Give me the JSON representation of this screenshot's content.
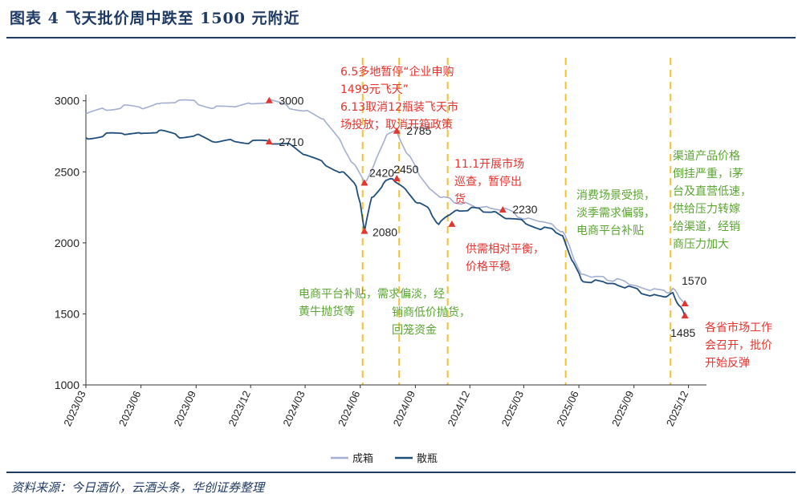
{
  "figure": {
    "title": "图表 4   飞天批价周中跌至 1500 元附近",
    "source": "资料来源：今日酒价，云酒头条，华创证券整理"
  },
  "colors": {
    "boxed": "#a3aed0",
    "loose": "#1f4e7a",
    "vline": "#f2c230",
    "marker": "#e3342f",
    "red_text": "#e3342f",
    "green_text": "#5aa531",
    "axis": "#333333"
  },
  "chart_data": {
    "type": "line",
    "title": "",
    "xlabel": "",
    "ylabel": "",
    "ylim": [
      1000,
      3100
    ],
    "yticks": [
      1000,
      1500,
      2000,
      2500,
      3000
    ],
    "x_range": [
      "2023-03-01",
      "2025-12-31"
    ],
    "xticks": [
      "2023/03",
      "2023/06",
      "2023/09",
      "2023/12",
      "2024/03",
      "2024/06",
      "2024/09",
      "2024/12",
      "2025/03",
      "2025/06",
      "2025/09",
      "2025/12"
    ],
    "legend": "bottom-left",
    "series": [
      {
        "name": "成箱",
        "points": [
          [
            "2023-03-01",
            2910
          ],
          [
            "2023-04-01",
            2940
          ],
          [
            "2023-05-01",
            2960
          ],
          [
            "2023-06-01",
            2950
          ],
          [
            "2023-07-01",
            2980
          ],
          [
            "2023-08-01",
            3000
          ],
          [
            "2023-09-01",
            2990
          ],
          [
            "2023-10-01",
            2950
          ],
          [
            "2023-11-01",
            2960
          ],
          [
            "2023-12-01",
            2980
          ],
          [
            "2024-01-01",
            3000
          ],
          [
            "2024-02-01",
            2960
          ],
          [
            "2024-03-01",
            2930
          ],
          [
            "2024-04-01",
            2870
          ],
          [
            "2024-05-01",
            2700
          ],
          [
            "2024-05-20",
            2560
          ],
          [
            "2024-06-08",
            2420
          ],
          [
            "2024-06-25",
            2560
          ],
          [
            "2024-07-15",
            2760
          ],
          [
            "2024-08-01",
            2785
          ],
          [
            "2024-08-20",
            2620
          ],
          [
            "2024-09-05",
            2500
          ],
          [
            "2024-09-25",
            2380
          ],
          [
            "2024-10-15",
            2320
          ],
          [
            "2024-11-01",
            2300
          ],
          [
            "2024-11-20",
            2280
          ],
          [
            "2024-12-10",
            2250
          ],
          [
            "2025-01-01",
            2250
          ],
          [
            "2025-01-25",
            2240
          ],
          [
            "2025-02-15",
            2200
          ],
          [
            "2025-03-05",
            2170
          ],
          [
            "2025-04-01",
            2150
          ],
          [
            "2025-04-20",
            2120
          ],
          [
            "2025-05-05",
            2080
          ],
          [
            "2025-05-20",
            1930
          ],
          [
            "2025-06-05",
            1780
          ],
          [
            "2025-06-25",
            1760
          ],
          [
            "2025-07-15",
            1750
          ],
          [
            "2025-08-01",
            1740
          ],
          [
            "2025-08-20",
            1720
          ],
          [
            "2025-09-10",
            1690
          ],
          [
            "2025-10-01",
            1670
          ],
          [
            "2025-10-25",
            1650
          ],
          [
            "2025-11-05",
            1680
          ],
          [
            "2025-11-15",
            1620
          ],
          [
            "2025-11-25",
            1570
          ]
        ]
      },
      {
        "name": "散瓶",
        "points": [
          [
            "2023-03-01",
            2740
          ],
          [
            "2023-04-01",
            2760
          ],
          [
            "2023-05-01",
            2770
          ],
          [
            "2023-06-01",
            2770
          ],
          [
            "2023-07-01",
            2790
          ],
          [
            "2023-08-01",
            2750
          ],
          [
            "2023-09-01",
            2760
          ],
          [
            "2023-10-01",
            2710
          ],
          [
            "2023-11-01",
            2720
          ],
          [
            "2023-12-01",
            2710
          ],
          [
            "2024-01-01",
            2710
          ],
          [
            "2024-02-01",
            2700
          ],
          [
            "2024-03-01",
            2620
          ],
          [
            "2024-04-01",
            2560
          ],
          [
            "2024-05-01",
            2500
          ],
          [
            "2024-05-25",
            2400
          ],
          [
            "2024-06-01",
            2280
          ],
          [
            "2024-06-08",
            2080
          ],
          [
            "2024-06-20",
            2320
          ],
          [
            "2024-07-10",
            2420
          ],
          [
            "2024-07-25",
            2450
          ],
          [
            "2024-08-15",
            2380
          ],
          [
            "2024-09-05",
            2280
          ],
          [
            "2024-09-25",
            2230
          ],
          [
            "2024-10-10",
            2130
          ],
          [
            "2024-10-25",
            2190
          ],
          [
            "2024-11-10",
            2230
          ],
          [
            "2024-12-01",
            2240
          ],
          [
            "2024-12-20",
            2230
          ],
          [
            "2025-01-10",
            2220
          ],
          [
            "2025-02-01",
            2170
          ],
          [
            "2025-03-01",
            2150
          ],
          [
            "2025-04-01",
            2100
          ],
          [
            "2025-04-20",
            2090
          ],
          [
            "2025-05-05",
            2050
          ],
          [
            "2025-05-20",
            1880
          ],
          [
            "2025-06-05",
            1740
          ],
          [
            "2025-06-25",
            1730
          ],
          [
            "2025-07-15",
            1720
          ],
          [
            "2025-08-01",
            1710
          ],
          [
            "2025-08-20",
            1690
          ],
          [
            "2025-09-10",
            1660
          ],
          [
            "2025-10-01",
            1630
          ],
          [
            "2025-10-25",
            1620
          ],
          [
            "2025-11-05",
            1650
          ],
          [
            "2025-11-15",
            1560
          ],
          [
            "2025-11-25",
            1485
          ]
        ]
      }
    ],
    "markers": [
      {
        "date": "2024-01-01",
        "value": 3000,
        "label": "3000"
      },
      {
        "date": "2024-01-01",
        "value": 2710,
        "label": "2710"
      },
      {
        "date": "2024-06-08",
        "value": 2420,
        "label": "2420"
      },
      {
        "date": "2024-06-08",
        "value": 2080,
        "label": "2080"
      },
      {
        "date": "2024-08-01",
        "value": 2785,
        "label": "2785"
      },
      {
        "date": "2024-08-01",
        "value": 2450,
        "label": "2450"
      },
      {
        "date": "2024-11-01",
        "value": 2130,
        "label": ""
      },
      {
        "date": "2025-01-25",
        "value": 2230,
        "label": "2230"
      },
      {
        "date": "2025-11-25",
        "value": 1570,
        "label": "1570"
      },
      {
        "date": "2025-11-25",
        "value": 1485,
        "label": "1485"
      }
    ],
    "vlines": [
      "2024-06-05",
      "2024-08-05",
      "2024-10-25",
      "2025-05-10",
      "2025-11-01"
    ],
    "annotations": [
      {
        "color": "red",
        "lines": [
          "6.5多地暂停“企业申购",
          "1499元飞天”",
          "6.13取消12瓶装飞天市",
          "场投放；取消开箱政策"
        ]
      },
      {
        "color": "red",
        "lines": [
          "11.1开展市场",
          "巡查，暂停出",
          "货"
        ]
      },
      {
        "color": "red",
        "lines": [
          "供需相对平衡，",
          "价格平稳"
        ]
      },
      {
        "color": "red",
        "lines": [
          "各省市场工作",
          "会召开，批价",
          "开始反弹"
        ]
      },
      {
        "color": "green",
        "lines": [
          "电商平台补贴，需求偏淡，经",
          "黄牛抛货等"
        ]
      },
      {
        "color": "green",
        "lines": [
          "销商低价抛货，",
          "回笼资金"
        ]
      },
      {
        "color": "green",
        "lines": [
          "消费场景受损，",
          "淡季需求偏弱，",
          "电商平台补贴"
        ]
      },
      {
        "color": "green",
        "lines": [
          "渠道产品价格",
          "倒挂严重，i茅",
          "台及直营低速，",
          "供给压力转嫁",
          "给渠道，经销",
          "商压力加大"
        ]
      }
    ]
  }
}
